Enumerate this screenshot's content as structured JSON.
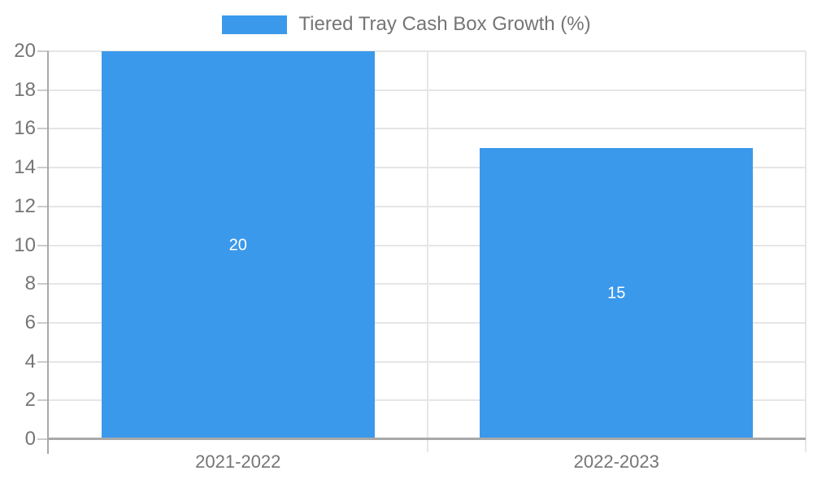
{
  "chart_data": {
    "type": "bar",
    "title": "Tiered Tray Cash Box Growth (%)",
    "legend": {
      "label": "Tiered Tray Cash Box Growth (%)",
      "position": "top-center"
    },
    "categories": [
      "2021-2022",
      "2022-2023"
    ],
    "values": [
      20,
      15
    ],
    "value_labels": [
      "20",
      "15"
    ],
    "y_ticks": [
      0,
      2,
      4,
      6,
      8,
      10,
      12,
      14,
      16,
      18,
      20
    ],
    "ylim": [
      0,
      20
    ],
    "xlabel": "",
    "ylabel": "",
    "grid": true,
    "bar_slot_fraction": 0.722,
    "colors": {
      "bar": "#3B99EB",
      "grid": "#e6e6e6",
      "axis": "#a8a8a8",
      "tick_mark": "#cccccc",
      "tick_label": "#757575",
      "value_label": "#ffffff",
      "background": "#ffffff"
    }
  }
}
